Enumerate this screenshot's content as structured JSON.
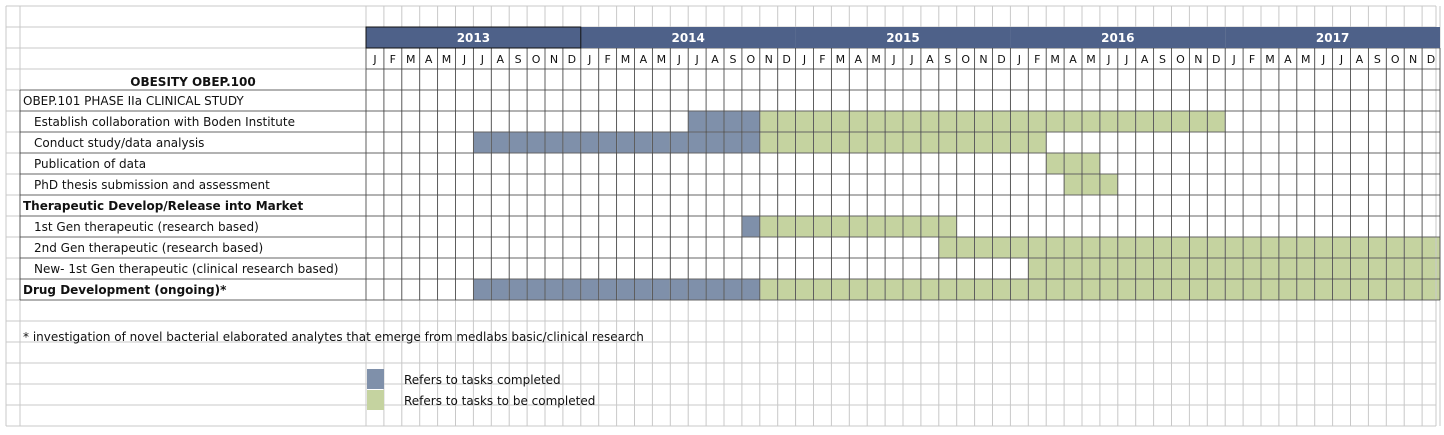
{
  "chart_data": {
    "type": "gantt",
    "title": "OBESITY OBEP.100",
    "years": [
      "2013",
      "2014",
      "2015",
      "2016",
      "2017"
    ],
    "months": [
      "J",
      "F",
      "M",
      "A",
      "M",
      "J",
      "J",
      "A",
      "S",
      "O",
      "N",
      "D"
    ],
    "legend": {
      "completed": "Refers to tasks completed",
      "to_complete": "Refers to tasks to be completed"
    },
    "footnote": "* investigation of novel bacterial elaborated analytes that emerge from medlabs basic/clinical research",
    "colors": {
      "completed": "#7f90aa",
      "to_complete": "#c5d3a0",
      "year_band": "#4e6189",
      "grid": "#c8c8c8",
      "section": "#8496b0"
    },
    "rows": [
      {
        "label": "OBEP.101 PHASE  IIa CLINICAL STUDY",
        "style": "section",
        "indent": false,
        "segments": []
      },
      {
        "label": "Establish collaboration with Boden Institute",
        "style": "task",
        "indent": true,
        "segments": [
          {
            "status": "completed",
            "start": "2014-07",
            "end": "2014-10"
          },
          {
            "status": "to_complete",
            "start": "2014-11",
            "end": "2016-12"
          }
        ]
      },
      {
        "label": "Conduct study/data analysis",
        "style": "task",
        "indent": true,
        "segments": [
          {
            "status": "completed",
            "start": "2013-07",
            "end": "2014-10"
          },
          {
            "status": "to_complete",
            "start": "2014-11",
            "end": "2016-02"
          }
        ]
      },
      {
        "label": "Publication of data",
        "style": "task",
        "indent": true,
        "segments": [
          {
            "status": "to_complete",
            "start": "2016-03",
            "end": "2016-05"
          }
        ]
      },
      {
        "label": "PhD thesis submission and assessment",
        "style": "task",
        "indent": true,
        "segments": [
          {
            "status": "to_complete",
            "start": "2016-04",
            "end": "2016-06"
          }
        ]
      },
      {
        "label": "Therapeutic Develop/Release into Market",
        "style": "bold",
        "indent": false,
        "segments": []
      },
      {
        "label": "1st Gen therapeutic (research based)",
        "style": "task",
        "indent": true,
        "segments": [
          {
            "status": "completed",
            "start": "2014-10",
            "end": "2014-10"
          },
          {
            "status": "to_complete",
            "start": "2014-11",
            "end": "2015-09"
          }
        ]
      },
      {
        "label": "2nd Gen therapeutic (research based)",
        "style": "task",
        "indent": true,
        "segments": [
          {
            "status": "to_complete",
            "start": "2015-09",
            "end": "2017-12"
          }
        ]
      },
      {
        "label": "New- 1st Gen therapeutic (clinical research based)",
        "style": "task",
        "indent": true,
        "segments": [
          {
            "status": "to_complete",
            "start": "2016-02",
            "end": "2017-12"
          }
        ]
      },
      {
        "label": "Drug Development (ongoing)*",
        "style": "bold",
        "indent": false,
        "segments": [
          {
            "status": "completed",
            "start": "2013-07",
            "end": "2014-10"
          },
          {
            "status": "to_complete",
            "start": "2014-11",
            "end": "2017-12"
          }
        ]
      }
    ]
  }
}
